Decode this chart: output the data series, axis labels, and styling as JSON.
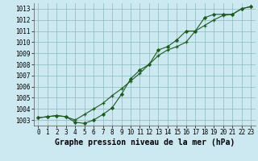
{
  "title": "Graphe pression niveau de la mer (hPa)",
  "bg_color": "#cce8f0",
  "grid_color": "#88bbbb",
  "line_color": "#1a5c1a",
  "marker_color": "#1a5c1a",
  "x_values": [
    0,
    1,
    2,
    3,
    4,
    5,
    6,
    7,
    8,
    9,
    10,
    11,
    12,
    13,
    14,
    15,
    16,
    17,
    18,
    19,
    20,
    21,
    22,
    23
  ],
  "line1": [
    1003.2,
    1003.3,
    1003.4,
    1003.3,
    1003.0,
    1003.5,
    1004.0,
    1004.5,
    1005.2,
    1005.8,
    1006.5,
    1007.2,
    1008.0,
    1008.8,
    1009.3,
    1009.6,
    1010.0,
    1011.0,
    1011.5,
    1012.0,
    1012.4,
    1012.5,
    1013.0,
    1013.2
  ],
  "line2": [
    1003.2,
    1003.3,
    1003.4,
    1003.3,
    1002.8,
    1002.7,
    1003.0,
    1003.5,
    1004.1,
    1005.3,
    1006.7,
    1007.5,
    1008.0,
    1009.3,
    1009.6,
    1010.2,
    1011.0,
    1011.0,
    1012.2,
    1012.5,
    1012.5,
    1012.5,
    1013.0,
    1013.2
  ],
  "ylim": [
    1002.5,
    1013.5
  ],
  "yticks": [
    1003,
    1004,
    1005,
    1006,
    1007,
    1008,
    1009,
    1010,
    1011,
    1012,
    1013
  ],
  "xlim": [
    -0.5,
    23.5
  ],
  "xticks": [
    0,
    1,
    2,
    3,
    4,
    5,
    6,
    7,
    8,
    9,
    10,
    11,
    12,
    13,
    14,
    15,
    16,
    17,
    18,
    19,
    20,
    21,
    22,
    23
  ],
  "title_fontsize": 7.0,
  "tick_fontsize": 5.5,
  "figwidth": 3.2,
  "figheight": 2.0,
  "dpi": 100
}
